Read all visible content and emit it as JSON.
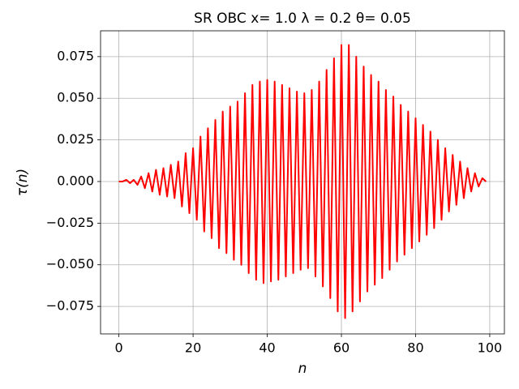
{
  "chart_data": {
    "type": "line",
    "title": "SR OBC x= 1.0 λ = 0.2 θ= 0.05",
    "x_label": "n",
    "y_label": "τ(n)",
    "x": [
      0,
      1,
      2,
      3,
      4,
      5,
      6,
      7,
      8,
      9,
      10,
      11,
      12,
      13,
      14,
      15,
      16,
      17,
      18,
      19,
      20,
      21,
      22,
      23,
      24,
      25,
      26,
      27,
      28,
      29,
      30,
      31,
      32,
      33,
      34,
      35,
      36,
      37,
      38,
      39,
      40,
      41,
      42,
      43,
      44,
      45,
      46,
      47,
      48,
      49,
      50,
      51,
      52,
      53,
      54,
      55,
      56,
      57,
      58,
      59,
      60,
      61,
      62,
      63,
      64,
      65,
      66,
      67,
      68,
      69,
      70,
      71,
      72,
      73,
      74,
      75,
      76,
      77,
      78,
      79,
      80,
      81,
      82,
      83,
      84,
      85,
      86,
      87,
      88,
      89,
      90,
      91,
      92,
      93,
      94,
      95,
      96,
      97,
      98,
      99
    ],
    "series": [
      {
        "name": "τ(n)",
        "color": "#ff0000",
        "values": [
          0.0,
          0.0,
          0.001,
          -0.001,
          0.001,
          -0.002,
          0.003,
          -0.004,
          0.005,
          -0.006,
          0.007,
          -0.008,
          0.008,
          -0.009,
          0.01,
          -0.01,
          0.012,
          -0.015,
          0.017,
          -0.019,
          0.02,
          -0.023,
          0.027,
          -0.03,
          0.032,
          -0.034,
          0.037,
          -0.04,
          0.042,
          -0.043,
          0.045,
          -0.047,
          0.048,
          -0.05,
          0.053,
          -0.055,
          0.058,
          -0.059,
          0.06,
          -0.061,
          0.061,
          -0.06,
          0.06,
          -0.059,
          0.058,
          -0.057,
          0.056,
          -0.055,
          0.054,
          -0.053,
          0.053,
          -0.052,
          0.055,
          -0.057,
          0.06,
          -0.063,
          0.067,
          -0.07,
          0.074,
          -0.078,
          0.082,
          -0.082,
          0.082,
          -0.078,
          0.075,
          -0.072,
          0.069,
          -0.066,
          0.064,
          -0.062,
          0.06,
          -0.058,
          0.055,
          -0.053,
          0.051,
          -0.048,
          0.046,
          -0.044,
          0.042,
          -0.04,
          0.038,
          -0.036,
          0.034,
          -0.032,
          0.03,
          -0.028,
          0.025,
          -0.023,
          0.02,
          -0.018,
          0.016,
          -0.014,
          0.012,
          -0.01,
          0.008,
          -0.006,
          0.005,
          -0.003,
          0.002,
          0.0
        ]
      }
    ],
    "xlim": [
      -4.95,
      103.95
    ],
    "xticks": [
      0,
      20,
      40,
      60,
      80,
      100
    ],
    "ylim": [
      -0.0915,
      0.0905
    ],
    "yticks": [
      {
        "value": -0.075,
        "label": "−0.075"
      },
      {
        "value": -0.05,
        "label": "−0.050"
      },
      {
        "value": -0.025,
        "label": "−0.025"
      },
      {
        "value": 0,
        "label": "0.000"
      },
      {
        "value": 0.025,
        "label": "0.025"
      },
      {
        "value": 0.05,
        "label": "0.050"
      },
      {
        "value": 0.075,
        "label": "0.075"
      }
    ],
    "grid": true
  }
}
